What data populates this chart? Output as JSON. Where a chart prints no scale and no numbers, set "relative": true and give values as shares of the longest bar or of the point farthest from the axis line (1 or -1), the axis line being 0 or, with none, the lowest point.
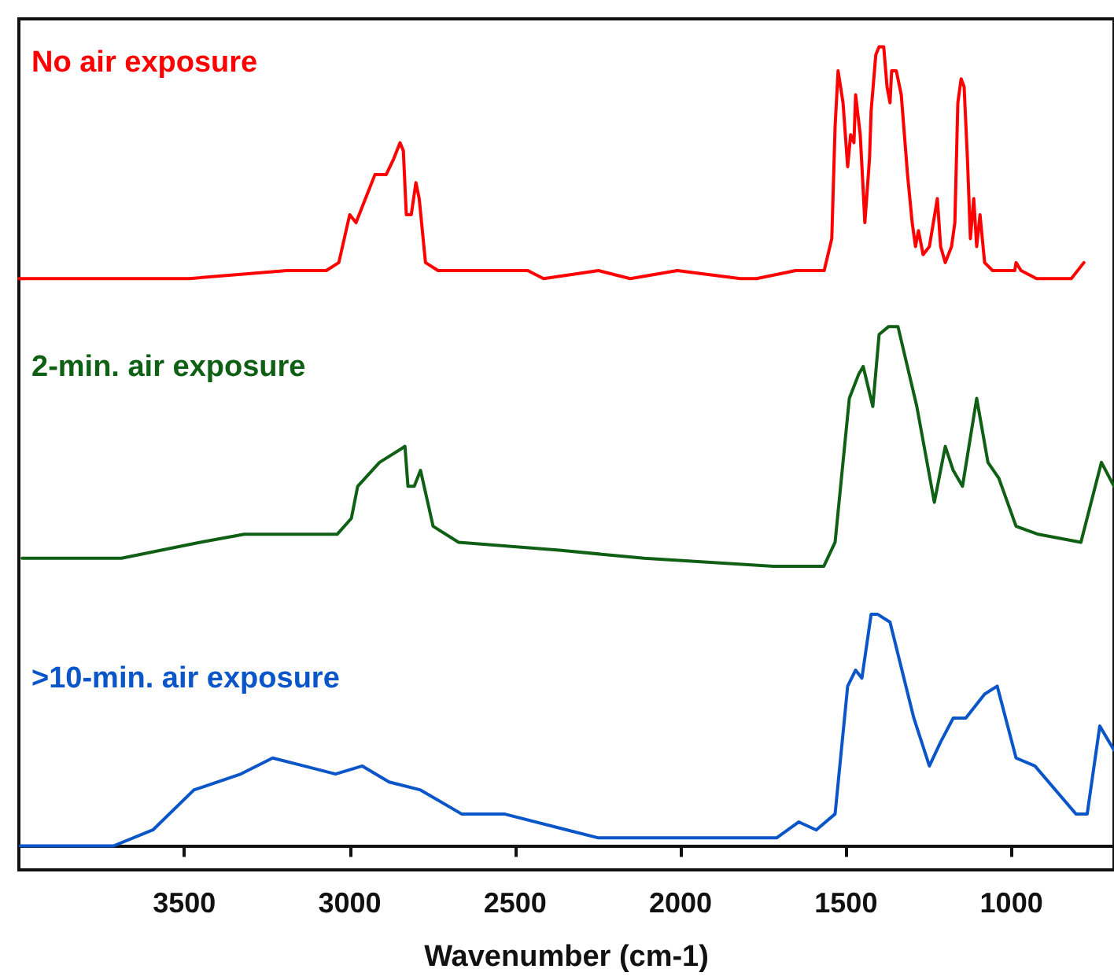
{
  "chart_data": {
    "type": "line",
    "xlabel": "Wavenumber (cm-1)",
    "relative": true,
    "xlim": [
      4000,
      690
    ],
    "xticks": [
      3500,
      3000,
      2500,
      2000,
      1500,
      1000
    ],
    "marker": "none",
    "series": [
      {
        "name": "No air exposure",
        "color": "#ff0000",
        "x": [
          4000,
          3486,
          3190,
          3071,
          3033,
          3000,
          2981,
          2962,
          2924,
          2890,
          2867,
          2848,
          2838,
          2829,
          2814,
          2800,
          2790,
          2771,
          2733,
          2652,
          2486,
          2462,
          2414,
          2248,
          2152,
          2010,
          1819,
          1771,
          1652,
          1581,
          1566,
          1543,
          1533,
          1524,
          1509,
          1495,
          1486,
          1476,
          1471,
          1457,
          1448,
          1443,
          1429,
          1424,
          1410,
          1400,
          1386,
          1376,
          1367,
          1362,
          1348,
          1333,
          1314,
          1300,
          1290,
          1281,
          1267,
          1248,
          1224,
          1214,
          1200,
          1181,
          1171,
          1162,
          1152,
          1143,
          1133,
          1124,
          1114,
          1105,
          1095,
          1081,
          1057,
          990,
          986,
          971,
          924,
          867,
          819,
          781
        ],
        "values": [
          0.71,
          0.71,
          0.72,
          0.72,
          0.73,
          0.79,
          0.78,
          0.8,
          0.84,
          0.84,
          0.86,
          0.88,
          0.87,
          0.79,
          0.79,
          0.83,
          0.81,
          0.73,
          0.72,
          0.72,
          0.72,
          0.72,
          0.71,
          0.72,
          0.71,
          0.72,
          0.71,
          0.71,
          0.72,
          0.72,
          0.72,
          0.76,
          0.9,
          0.97,
          0.93,
          0.85,
          0.89,
          0.88,
          0.94,
          0.89,
          0.82,
          0.78,
          0.86,
          0.92,
          0.99,
          1,
          1,
          0.95,
          0.93,
          0.97,
          0.97,
          0.94,
          0.84,
          0.78,
          0.75,
          0.77,
          0.74,
          0.75,
          0.81,
          0.75,
          0.73,
          0.75,
          0.78,
          0.93,
          0.96,
          0.95,
          0.86,
          0.76,
          0.81,
          0.75,
          0.79,
          0.73,
          0.72,
          0.72,
          0.73,
          0.72,
          0.71,
          0.71,
          0.71,
          0.73
        ]
      },
      {
        "name": "2-min. air exposure",
        "color": "#0f5f14",
        "x": [
          3990,
          3690,
          3452,
          3319,
          3038,
          2995,
          2976,
          2910,
          2833,
          2824,
          2805,
          2786,
          2748,
          2671,
          2367,
          2110,
          1719,
          1567,
          1533,
          1490,
          1462,
          1448,
          1419,
          1400,
          1371,
          1343,
          1286,
          1233,
          1200,
          1176,
          1148,
          1105,
          1071,
          1038,
          986,
          919,
          790,
          728,
          690
        ],
        "values": [
          0.36,
          0.36,
          0.38,
          0.39,
          0.39,
          0.41,
          0.45,
          0.48,
          0.5,
          0.45,
          0.45,
          0.47,
          0.4,
          0.38,
          0.37,
          0.36,
          0.35,
          0.35,
          0.38,
          0.56,
          0.59,
          0.6,
          0.55,
          0.64,
          0.65,
          0.65,
          0.55,
          0.43,
          0.5,
          0.47,
          0.45,
          0.56,
          0.48,
          0.46,
          0.4,
          0.39,
          0.38,
          0.48,
          0.45
        ]
      },
      {
        "name": ">10-min. air exposure",
        "color": "#0a55c8",
        "x": [
          3995,
          3738,
          3714,
          3595,
          3471,
          3329,
          3233,
          3138,
          3043,
          2962,
          2881,
          2786,
          2662,
          2533,
          2343,
          2248,
          1962,
          1710,
          1643,
          1590,
          1533,
          1495,
          1471,
          1452,
          1424,
          1405,
          1367,
          1295,
          1248,
          1214,
          1176,
          1138,
          1081,
          1043,
          986,
          929,
          805,
          771,
          733,
          690
        ],
        "values": [
          0,
          0,
          0,
          0.02,
          0.07,
          0.09,
          0.11,
          0.1,
          0.09,
          0.1,
          0.08,
          0.07,
          0.04,
          0.04,
          0.02,
          0.01,
          0.01,
          0.01,
          0.03,
          0.02,
          0.04,
          0.2,
          0.22,
          0.21,
          0.29,
          0.29,
          0.28,
          0.16,
          0.1,
          0.13,
          0.16,
          0.16,
          0.19,
          0.2,
          0.11,
          0.1,
          0.04,
          0.04,
          0.15,
          0.12
        ]
      }
    ]
  }
}
